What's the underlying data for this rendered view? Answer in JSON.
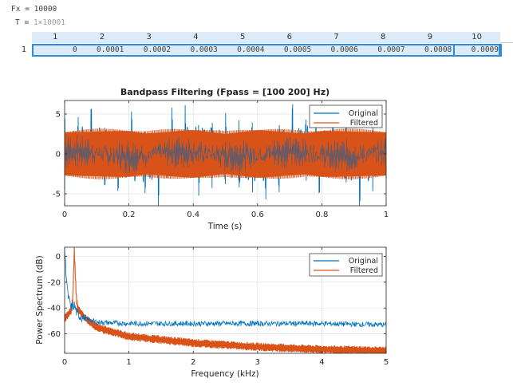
{
  "workspace": {
    "fx": {
      "name": "Fx",
      "equals": "=",
      "value": "10000"
    },
    "t": {
      "name": "T",
      "equals": "=",
      "value": "1×10001"
    }
  },
  "table": {
    "column_headers": [
      "1",
      "2",
      "3",
      "4",
      "5",
      "6",
      "7",
      "8",
      "9",
      "10"
    ],
    "row_header": "1",
    "values": [
      "0",
      "0.0001",
      "0.0002",
      "0.0003",
      "0.0004",
      "0.0005",
      "0.0006",
      "0.0007",
      "0.0008",
      "0.0009"
    ],
    "selected_column": 10
  },
  "colors": {
    "original": "#0072BD",
    "filtered": "#D95319",
    "table_bg": "#dcebfa",
    "table_border": "#2e8ddb"
  },
  "chart_data": [
    {
      "type": "line",
      "title": "Bandpass Filtering  (Fpass = [100 200] Hz)",
      "xlabel": "Time (s)",
      "ylabel": "",
      "xlim": [
        0,
        1
      ],
      "ylim": [
        -6.5,
        6.7
      ],
      "xticks": [
        0,
        0.2,
        0.4,
        0.6,
        0.8,
        1
      ],
      "xtick_labels": [
        "0",
        "0.2",
        "0.4",
        "0.6",
        "0.8",
        "1"
      ],
      "yticks": [
        -5,
        0,
        5
      ],
      "ytick_labels": [
        "-5",
        "0",
        "5"
      ],
      "grid": true,
      "legend": {
        "placement": "top-right",
        "entries": [
          "Original",
          "Filtered"
        ]
      },
      "series": [
        {
          "name": "Original",
          "description": "Multi-tone signal with periodic spikes reaching about ±6.5, burst period ~0.04 s",
          "envelope": [
            -6.5,
            6.5
          ],
          "spike_period_s": 0.0417
        },
        {
          "name": "Filtered",
          "description": "Bandpass output (100-200 Hz), dense oscillation with nearly constant amplitude about ±3",
          "envelope": [
            -3,
            3
          ]
        }
      ]
    },
    {
      "type": "line",
      "title": "",
      "xlabel": "Frequency (kHz)",
      "ylabel": "Power Spectrum (dB)",
      "xlim": [
        0,
        5
      ],
      "ylim": [
        -75,
        7
      ],
      "xticks": [
        0,
        1,
        2,
        3,
        4,
        5
      ],
      "xtick_labels": [
        "0",
        "1",
        "2",
        "3",
        "4",
        "5"
      ],
      "yticks": [
        -60,
        -40,
        -20,
        0
      ],
      "ytick_labels": [
        "-60",
        "-40",
        "-20",
        "0"
      ],
      "grid": true,
      "legend": {
        "placement": "top-right",
        "entries": [
          "Original",
          "Filtered"
        ]
      },
      "series": [
        {
          "name": "Original",
          "x": [
            0,
            0.02,
            0.05,
            0.1,
            0.15,
            0.2,
            0.3,
            0.5,
            1,
            2,
            3,
            4,
            5
          ],
          "y": [
            5,
            -10,
            -30,
            -40,
            -38,
            -45,
            -48,
            -51,
            -52,
            -52,
            -52,
            -52,
            -53
          ]
        },
        {
          "name": "Filtered",
          "x": [
            0,
            0.05,
            0.1,
            0.13,
            0.15,
            0.18,
            0.2,
            0.3,
            0.5,
            1,
            2,
            3,
            4,
            5
          ],
          "y": [
            -48,
            -45,
            -42,
            -30,
            5,
            -30,
            -40,
            -47,
            -55,
            -62,
            -67,
            -70,
            -72,
            -73
          ]
        }
      ]
    }
  ]
}
